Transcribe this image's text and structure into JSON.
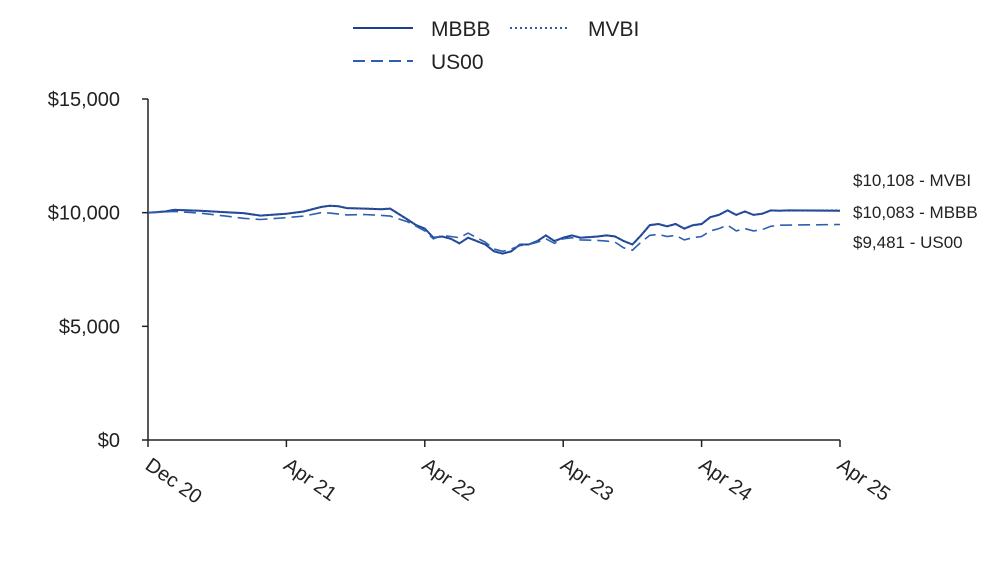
{
  "chart_data": {
    "type": "line",
    "title": "",
    "xlabel": "",
    "ylabel": "",
    "ylim": [
      0,
      15000
    ],
    "y_ticks": [
      {
        "value": 0,
        "label": "$0"
      },
      {
        "value": 5000,
        "label": "$5,000"
      },
      {
        "value": 10000,
        "label": "$10,000"
      },
      {
        "value": 15000,
        "label": "$15,000"
      }
    ],
    "x_ticks": [
      {
        "month": 0,
        "label": "Dec 20"
      },
      {
        "month": 16,
        "label": "Apr 21"
      },
      {
        "month": 32,
        "label": "Apr 22"
      },
      {
        "month": 48,
        "label": "Apr 23"
      },
      {
        "month": 64,
        "label": "Apr 24"
      },
      {
        "month": 80,
        "label": "Apr 25"
      }
    ],
    "grid": false,
    "legend_position": "top-center",
    "colors": {
      "MBBB": "#1f3f8f",
      "MVBI": "#2a5aa8",
      "US00": "#2d5fb0"
    },
    "series": [
      {
        "name": "MBBB",
        "style": "solid",
        "end_label": "$10,083 - MBBB",
        "points": [
          [
            0,
            10000
          ],
          [
            2,
            10050
          ],
          [
            3,
            10120
          ],
          [
            6,
            10080
          ],
          [
            9,
            10020
          ],
          [
            11,
            9980
          ],
          [
            13,
            9870
          ],
          [
            16,
            9950
          ],
          [
            18,
            10050
          ],
          [
            20,
            10250
          ],
          [
            21,
            10300
          ],
          [
            22,
            10280
          ],
          [
            23,
            10200
          ],
          [
            25,
            10180
          ],
          [
            27,
            10150
          ],
          [
            28,
            10180
          ],
          [
            30,
            9700
          ],
          [
            31,
            9450
          ],
          [
            32,
            9300
          ],
          [
            33,
            8900
          ],
          [
            34,
            8950
          ],
          [
            35,
            8850
          ],
          [
            36,
            8650
          ],
          [
            37,
            8900
          ],
          [
            38,
            8750
          ],
          [
            39,
            8600
          ],
          [
            40,
            8300
          ],
          [
            41,
            8200
          ],
          [
            42,
            8300
          ],
          [
            43,
            8600
          ],
          [
            44,
            8600
          ],
          [
            45,
            8750
          ],
          [
            46,
            9000
          ],
          [
            47,
            8750
          ],
          [
            48,
            8900
          ],
          [
            49,
            9000
          ],
          [
            50,
            8900
          ],
          [
            52,
            8950
          ],
          [
            53,
            9000
          ],
          [
            54,
            8950
          ],
          [
            55,
            8750
          ],
          [
            56,
            8600
          ],
          [
            57,
            9000
          ],
          [
            58,
            9450
          ],
          [
            59,
            9500
          ],
          [
            60,
            9400
          ],
          [
            61,
            9500
          ],
          [
            62,
            9300
          ],
          [
            63,
            9450
          ],
          [
            64,
            9500
          ],
          [
            65,
            9800
          ],
          [
            66,
            9900
          ],
          [
            67,
            10100
          ],
          [
            68,
            9900
          ],
          [
            69,
            10050
          ],
          [
            70,
            9900
          ],
          [
            71,
            9950
          ],
          [
            72,
            10100
          ],
          [
            73,
            10080
          ],
          [
            74,
            10100
          ],
          [
            80,
            10083
          ]
        ]
      },
      {
        "name": "MVBI",
        "style": "dotted",
        "end_label": "$10,108 - MVBI",
        "points": [
          [
            0,
            10000
          ],
          [
            2,
            10070
          ],
          [
            3,
            10140
          ],
          [
            6,
            10090
          ],
          [
            9,
            10030
          ],
          [
            11,
            9990
          ],
          [
            13,
            9880
          ],
          [
            16,
            9960
          ],
          [
            18,
            10060
          ],
          [
            20,
            10260
          ],
          [
            21,
            10310
          ],
          [
            22,
            10290
          ],
          [
            23,
            10210
          ],
          [
            25,
            10190
          ],
          [
            27,
            10160
          ],
          [
            28,
            10190
          ],
          [
            30,
            9710
          ],
          [
            31,
            9460
          ],
          [
            32,
            9310
          ],
          [
            33,
            8910
          ],
          [
            34,
            8960
          ],
          [
            35,
            8860
          ],
          [
            36,
            8660
          ],
          [
            37,
            8910
          ],
          [
            38,
            8760
          ],
          [
            39,
            8610
          ],
          [
            40,
            8310
          ],
          [
            41,
            8210
          ],
          [
            42,
            8310
          ],
          [
            43,
            8610
          ],
          [
            44,
            8610
          ],
          [
            45,
            8760
          ],
          [
            46,
            9010
          ],
          [
            47,
            8760
          ],
          [
            48,
            8910
          ],
          [
            49,
            9010
          ],
          [
            50,
            8910
          ],
          [
            52,
            8960
          ],
          [
            53,
            9010
          ],
          [
            54,
            8960
          ],
          [
            55,
            8760
          ],
          [
            56,
            8610
          ],
          [
            57,
            9010
          ],
          [
            58,
            9460
          ],
          [
            59,
            9510
          ],
          [
            60,
            9410
          ],
          [
            61,
            9510
          ],
          [
            62,
            9310
          ],
          [
            63,
            9460
          ],
          [
            64,
            9510
          ],
          [
            65,
            9810
          ],
          [
            66,
            9910
          ],
          [
            67,
            10110
          ],
          [
            68,
            9910
          ],
          [
            69,
            10060
          ],
          [
            70,
            9910
          ],
          [
            71,
            9960
          ],
          [
            72,
            10110
          ],
          [
            73,
            10090
          ],
          [
            74,
            10110
          ],
          [
            80,
            10108
          ]
        ]
      },
      {
        "name": "US00",
        "style": "dashed",
        "end_label": "$9,481 - US00",
        "points": [
          [
            0,
            10000
          ],
          [
            3,
            10050
          ],
          [
            6,
            9980
          ],
          [
            9,
            9850
          ],
          [
            11,
            9750
          ],
          [
            13,
            9700
          ],
          [
            16,
            9780
          ],
          [
            18,
            9850
          ],
          [
            20,
            10000
          ],
          [
            21,
            9980
          ],
          [
            23,
            9900
          ],
          [
            25,
            9920
          ],
          [
            27,
            9880
          ],
          [
            28,
            9850
          ],
          [
            30,
            9600
          ],
          [
            31,
            9400
          ],
          [
            32,
            9200
          ],
          [
            33,
            8850
          ],
          [
            34,
            9000
          ],
          [
            35,
            8950
          ],
          [
            36,
            8900
          ],
          [
            37,
            9100
          ],
          [
            38,
            8900
          ],
          [
            39,
            8700
          ],
          [
            40,
            8400
          ],
          [
            41,
            8300
          ],
          [
            42,
            8400
          ],
          [
            43,
            8550
          ],
          [
            44,
            8600
          ],
          [
            45,
            8700
          ],
          [
            46,
            8850
          ],
          [
            47,
            8650
          ],
          [
            48,
            8850
          ],
          [
            49,
            8900
          ],
          [
            50,
            8800
          ],
          [
            52,
            8780
          ],
          [
            53,
            8750
          ],
          [
            54,
            8700
          ],
          [
            55,
            8450
          ],
          [
            56,
            8350
          ],
          [
            57,
            8700
          ],
          [
            58,
            9000
          ],
          [
            59,
            9050
          ],
          [
            60,
            8950
          ],
          [
            61,
            9000
          ],
          [
            62,
            8800
          ],
          [
            63,
            8900
          ],
          [
            64,
            8950
          ],
          [
            65,
            9200
          ],
          [
            66,
            9300
          ],
          [
            67,
            9450
          ],
          [
            68,
            9200
          ],
          [
            69,
            9300
          ],
          [
            70,
            9200
          ],
          [
            71,
            9250
          ],
          [
            72,
            9400
          ],
          [
            73,
            9450
          ],
          [
            80,
            9481
          ]
        ]
      }
    ]
  }
}
